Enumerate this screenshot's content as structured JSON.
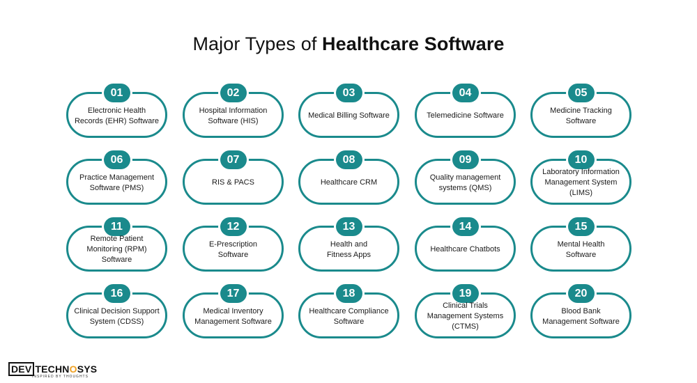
{
  "title": {
    "regular": "Major Types of ",
    "bold": "Healthcare Software"
  },
  "items": [
    {
      "num": "01",
      "label": "Electronic Health\nRecords (EHR) Software"
    },
    {
      "num": "02",
      "label": "Hospital Information\nSoftware (HIS)"
    },
    {
      "num": "03",
      "label": "Medical Billing Software"
    },
    {
      "num": "04",
      "label": "Telemedicine Software"
    },
    {
      "num": "05",
      "label": "Medicine Tracking\nSoftware"
    },
    {
      "num": "06",
      "label": "Practice Management\nSoftware (PMS)"
    },
    {
      "num": "07",
      "label": "RIS & PACS"
    },
    {
      "num": "08",
      "label": "Healthcare CRM"
    },
    {
      "num": "09",
      "label": "Quality management\nsystems (QMS)"
    },
    {
      "num": "10",
      "label": "Laboratory Information\nManagement System\n(LIMS)"
    },
    {
      "num": "11",
      "label": "Remote Patient\nMonitoring (RPM)\nSoftware"
    },
    {
      "num": "12",
      "label": "E-Prescription\nSoftware"
    },
    {
      "num": "13",
      "label": "Health and\nFitness Apps"
    },
    {
      "num": "14",
      "label": "Healthcare Chatbots"
    },
    {
      "num": "15",
      "label": "Mental Health\nSoftware"
    },
    {
      "num": "16",
      "label": "Clinical Decision Support\nSystem (CDSS)"
    },
    {
      "num": "17",
      "label": "Medical Inventory\nManagement Software"
    },
    {
      "num": "18",
      "label": "Healthcare Compliance\nSoftware"
    },
    {
      "num": "19",
      "label": "Clinical Trials\nManagement Systems\n(CTMS)"
    },
    {
      "num": "20",
      "label": "Blood Bank\nManagement Software"
    }
  ],
  "logo": {
    "dev": "DEV",
    "techno": "TECHN",
    "o": "O",
    "sys": "SYS",
    "tagline": "INSPIRED BY THOUGHTS"
  },
  "colors": {
    "accent": "#1a8a8c"
  }
}
